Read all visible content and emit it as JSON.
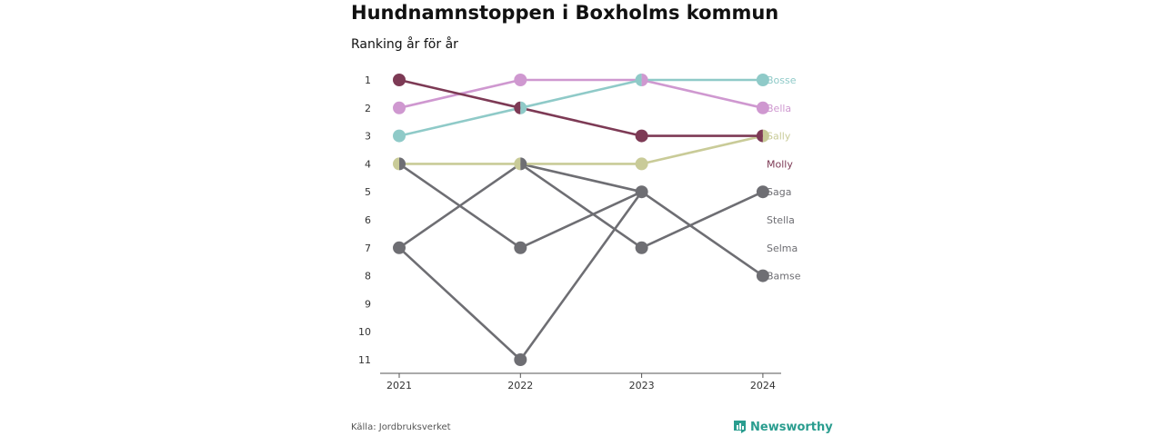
{
  "header": {
    "title": "Hundnamnstoppen i Boxholms kommun",
    "subtitle": "Ranking år för år"
  },
  "footer": {
    "source": "Källa: Jordbruksverket",
    "brand": "Newsworthy",
    "brand_color": "#2a9d8f"
  },
  "chart_data": {
    "type": "line",
    "x": [
      "2021",
      "2022",
      "2023",
      "2024"
    ],
    "y_ticks": [
      1,
      2,
      3,
      4,
      5,
      6,
      7,
      8,
      9,
      10,
      11
    ],
    "ylim": [
      1,
      11
    ],
    "y_inverted": true,
    "grid": false,
    "series": [
      {
        "name": "Stella",
        "color": "#6e6e73",
        "values": [
          7,
          4,
          5,
          null
        ]
      },
      {
        "name": "Selma",
        "color": "#6e6e73",
        "values": [
          7,
          11,
          5,
          null
        ]
      },
      {
        "name": "Bamse",
        "color": "#6e6e73",
        "values": [
          4,
          7,
          5,
          8
        ]
      },
      {
        "name": "Saga",
        "color": "#6e6e73",
        "values": [
          null,
          4,
          7,
          5
        ]
      },
      {
        "name": "Sally",
        "color": "#c9cb98",
        "values": [
          4,
          4,
          4,
          3
        ]
      },
      {
        "name": "Bella",
        "color": "#cf98d0",
        "values": [
          2,
          1,
          1,
          2
        ]
      },
      {
        "name": "Bosse",
        "color": "#8fcac8",
        "values": [
          3,
          2,
          1,
          1
        ]
      },
      {
        "name": "Molly",
        "color": "#7d3a55",
        "values": [
          1,
          2,
          3,
          3
        ]
      }
    ],
    "end_labels": [
      {
        "name": "Bosse",
        "rank": 1,
        "color": "#8fcac8"
      },
      {
        "name": "Bella",
        "rank": 2,
        "color": "#cf98d0"
      },
      {
        "name": "Sally",
        "rank": 3,
        "color": "#c9cb98"
      },
      {
        "name": "Molly",
        "rank": 4,
        "color": "#7d3a55"
      },
      {
        "name": "Saga",
        "rank": 5,
        "color": "#6e6e73"
      },
      {
        "name": "Stella",
        "rank": 6,
        "color": "#6e6e73"
      },
      {
        "name": "Selma",
        "rank": 7,
        "color": "#6e6e73"
      },
      {
        "name": "Bamse",
        "rank": 8,
        "color": "#6e6e73"
      }
    ]
  }
}
